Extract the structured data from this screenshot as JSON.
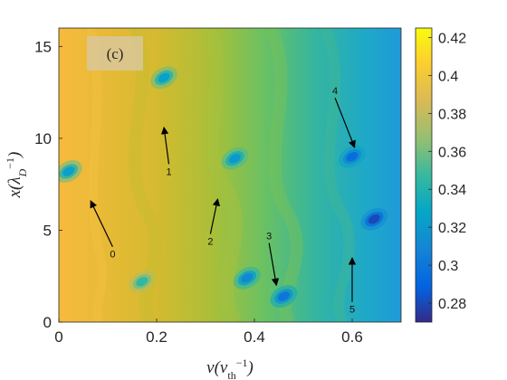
{
  "chart_data": {
    "type": "heatmap",
    "panel_label": "(c)",
    "xlabel": "v(v_th^-1)",
    "ylabel": "x(λ_D^-1)",
    "xlim": [
      0,
      0.7
    ],
    "ylim": [
      0,
      16
    ],
    "x_ticks": [
      "0",
      "0.2",
      "0.4",
      "0.6"
    ],
    "x_tick_values": [
      0,
      0.2,
      0.4,
      0.6
    ],
    "y_ticks": [
      "0",
      "5",
      "10",
      "15"
    ],
    "y_tick_values": [
      0,
      5,
      10,
      15
    ],
    "colorbar": {
      "limits": [
        0.27,
        0.425
      ],
      "ticks": [
        "0.28",
        "0.3",
        "0.32",
        "0.34",
        "0.36",
        "0.38",
        "0.4",
        "0.42"
      ],
      "tick_values": [
        0.28,
        0.3,
        0.32,
        0.34,
        0.36,
        0.38,
        0.4,
        0.42
      ],
      "colormap": "parula"
    },
    "vortices": [
      {
        "v": 0.02,
        "x": 8.2,
        "value": 0.325
      },
      {
        "v": 0.215,
        "x": 13.3,
        "value": 0.325
      },
      {
        "v": 0.36,
        "x": 8.9,
        "value": 0.32
      },
      {
        "v": 0.6,
        "x": 9.0,
        "value": 0.295
      },
      {
        "v": 0.645,
        "x": 5.6,
        "value": 0.28
      },
      {
        "v": 0.46,
        "x": 1.4,
        "value": 0.3
      },
      {
        "v": 0.385,
        "x": 2.4,
        "value": 0.31
      },
      {
        "v": 0.17,
        "x": 2.2,
        "value": 0.345
      }
    ],
    "annotations": [
      {
        "label": "0",
        "tail": [
          0.11,
          4.1
        ],
        "head": [
          0.065,
          6.6
        ]
      },
      {
        "label": "1",
        "tail": [
          0.225,
          8.6
        ],
        "head": [
          0.215,
          10.6
        ]
      },
      {
        "label": "2",
        "tail": [
          0.31,
          4.8
        ],
        "head": [
          0.325,
          6.7
        ]
      },
      {
        "label": "3",
        "tail": [
          0.43,
          4.3
        ],
        "head": [
          0.445,
          2.0
        ]
      },
      {
        "label": "4",
        "tail": [
          0.565,
          12.2
        ],
        "head": [
          0.605,
          9.5
        ]
      },
      {
        "label": "5",
        "tail": [
          0.6,
          1.1
        ],
        "head": [
          0.6,
          3.5
        ]
      }
    ]
  }
}
